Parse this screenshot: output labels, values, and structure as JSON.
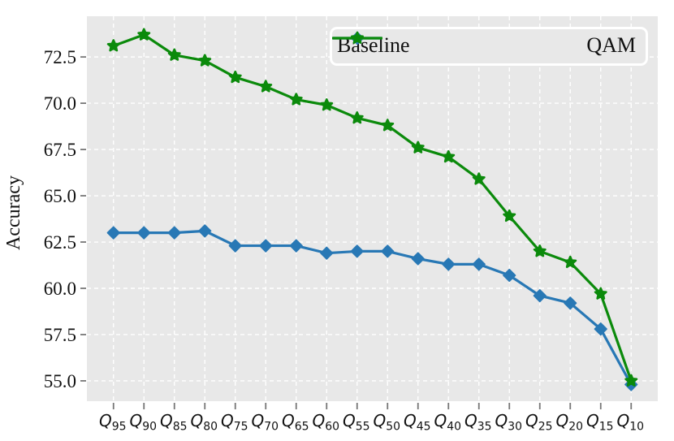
{
  "chart_data": {
    "type": "line",
    "title": "",
    "xlabel": "",
    "ylabel": "Accuracy",
    "categories": [
      "Q95",
      "Q90",
      "Q85",
      "Q80",
      "Q75",
      "Q70",
      "Q65",
      "Q60",
      "Q55",
      "Q50",
      "Q45",
      "Q40",
      "Q35",
      "Q30",
      "Q25",
      "Q20",
      "Q15",
      "Q10"
    ],
    "series": [
      {
        "name": "Baseline",
        "color": "#2878b5",
        "marker": "diamond",
        "values": [
          63.0,
          63.0,
          63.0,
          63.1,
          62.3,
          62.3,
          62.3,
          61.9,
          62.0,
          62.0,
          61.6,
          61.3,
          61.3,
          60.7,
          59.6,
          59.2,
          57.8,
          54.8
        ]
      },
      {
        "name": "QAM",
        "color": "#0b8a0b",
        "marker": "star",
        "values": [
          73.1,
          73.7,
          72.6,
          72.3,
          71.4,
          70.9,
          70.2,
          69.9,
          69.2,
          68.8,
          67.6,
          67.1,
          65.9,
          63.9,
          62.0,
          61.4,
          59.7,
          55.0
        ]
      }
    ],
    "y_ticks": [
      55.0,
      57.5,
      60.0,
      62.5,
      65.0,
      67.5,
      70.0,
      72.5
    ],
    "ylim": [
      53.9,
      74.7
    ],
    "grid": true,
    "grid_style": "dashed",
    "plot_background": "#e8e8e8",
    "grid_color": "#ffffff",
    "tick_color": "#777777",
    "text_color": "#111111",
    "legend_position": "upper right"
  }
}
